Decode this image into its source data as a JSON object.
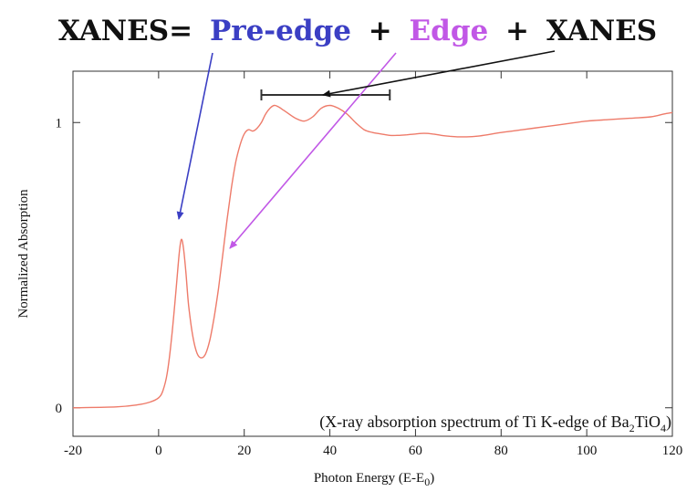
{
  "title": {
    "xanes_left": "XANES=",
    "pre_edge": "Pre-edge",
    "plus1": "+",
    "edge": "Edge",
    "plus2": "+",
    "xanes_right": "XANES"
  },
  "colors": {
    "pre_edge": "#3b3fc4",
    "edge": "#c158e6",
    "xanes": "#111111",
    "curve": "#ee7b6a",
    "axis": "#333333"
  },
  "annotation": {
    "prefix": "(X-ray absorption spectrum of Ti K-edge of Ba",
    "sub1": "2",
    "mid": "TiO",
    "sub2": "4",
    "suffix": ")"
  },
  "chart_data": {
    "type": "line",
    "title": "",
    "xlabel_main": "Photon Energy (E-E",
    "xlabel_sub": "0",
    "xlabel_end": ")",
    "ylabel": "Normalized Absorption",
    "xlim": [
      -20,
      120
    ],
    "ylim": [
      -0.1,
      1.18
    ],
    "xticks": [
      -20,
      0,
      20,
      40,
      60,
      80,
      100,
      120
    ],
    "yticks": [
      0,
      1
    ],
    "grid": false,
    "xanes_bracket": [
      24,
      54
    ],
    "series": [
      {
        "x": [
          -20,
          -10,
          -5,
          -2,
          0,
          1,
          2,
          3,
          4,
          4.8,
          5.3,
          5.8,
          6.4,
          7,
          8,
          9,
          10,
          11,
          12,
          13,
          14,
          15,
          16,
          17,
          18,
          19,
          20,
          21,
          22,
          23,
          24,
          25,
          26,
          27,
          28,
          29,
          30,
          32,
          34,
          36,
          38,
          40,
          42,
          44,
          46,
          48,
          50,
          52,
          54,
          56,
          58,
          60,
          62,
          64,
          66,
          68,
          70,
          72,
          75,
          80,
          85,
          90,
          95,
          100,
          105,
          110,
          115,
          118,
          120
        ],
        "y": [
          0.0,
          0.003,
          0.01,
          0.02,
          0.035,
          0.06,
          0.12,
          0.24,
          0.4,
          0.54,
          0.59,
          0.56,
          0.47,
          0.36,
          0.25,
          0.19,
          0.175,
          0.19,
          0.24,
          0.32,
          0.42,
          0.54,
          0.66,
          0.77,
          0.86,
          0.92,
          0.96,
          0.975,
          0.97,
          0.98,
          1.0,
          1.03,
          1.05,
          1.06,
          1.055,
          1.045,
          1.035,
          1.015,
          1.005,
          1.02,
          1.05,
          1.06,
          1.05,
          1.03,
          1.0,
          0.975,
          0.965,
          0.96,
          0.955,
          0.955,
          0.957,
          0.96,
          0.962,
          0.96,
          0.955,
          0.952,
          0.95,
          0.95,
          0.953,
          0.965,
          0.975,
          0.985,
          0.995,
          1.005,
          1.01,
          1.015,
          1.02,
          1.03,
          1.035
        ]
      }
    ]
  }
}
